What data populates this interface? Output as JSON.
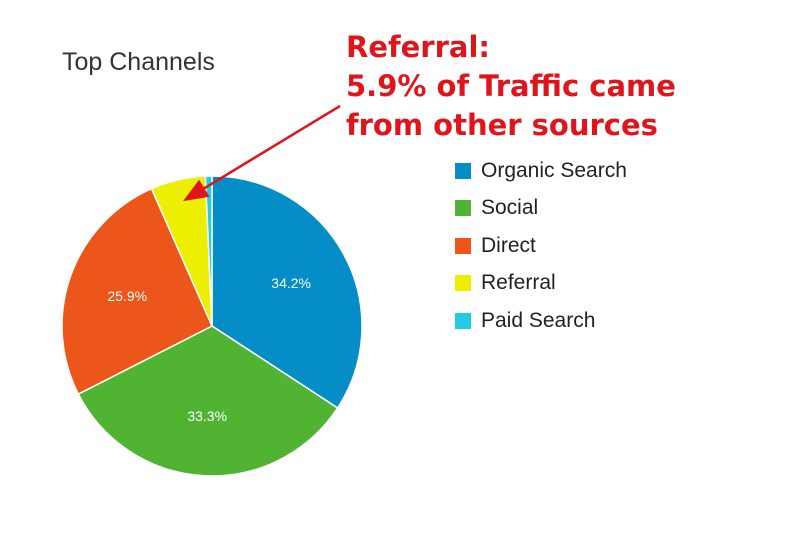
{
  "chart_data": {
    "type": "pie",
    "title": "Top Channels",
    "categories": [
      "Organic Search",
      "Social",
      "Direct",
      "Referral",
      "Paid Search"
    ],
    "values": [
      34.2,
      33.3,
      25.9,
      5.9,
      0.7
    ],
    "value_labels": [
      "34.2%",
      "33.3%",
      "25.9%",
      "",
      ""
    ],
    "colors": [
      "#058dc7",
      "#50b432",
      "#ed561b",
      "#edef00",
      "#24cbe5"
    ],
    "legend_position": "right"
  },
  "annotation": {
    "lines": [
      "Referral:",
      "5.9% of Traffic came",
      "from other sources"
    ],
    "color": "#e0141b",
    "arrow_target": "Referral"
  }
}
